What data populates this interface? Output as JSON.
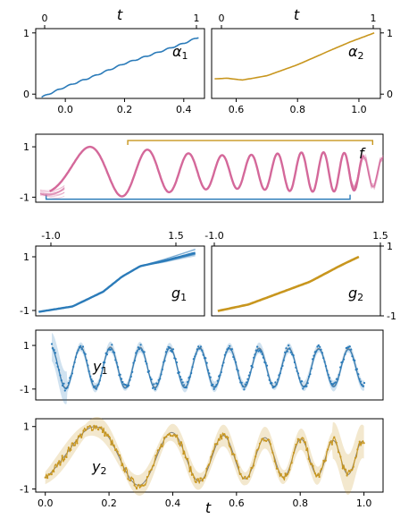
{
  "colors": {
    "blue": "#2b7bb9",
    "gold": "#c8961e",
    "pink": "#d4689a",
    "gray": "#777777"
  },
  "chart_data": [
    {
      "id": "alpha1",
      "type": "line",
      "label": "α",
      "label_sub": "1",
      "top_axis_label": "t",
      "top_ticks": [
        "0",
        "1"
      ],
      "xticks": [
        "0.0",
        "0.2",
        "0.4"
      ],
      "yticks": [
        "0",
        "1"
      ],
      "xlim": [
        -0.1,
        0.47
      ],
      "ylim": [
        -0.07,
        1.07
      ],
      "series": [
        {
          "color": "blue",
          "x": [
            -0.08,
            0.0,
            0.1,
            0.2,
            0.3,
            0.4,
            0.45
          ],
          "y": [
            -0.05,
            0.12,
            0.3,
            0.5,
            0.66,
            0.83,
            0.93
          ]
        }
      ]
    },
    {
      "id": "alpha2",
      "type": "line",
      "label": "α",
      "label_sub": "2",
      "top_axis_label": "t",
      "top_ticks": [
        "0",
        "1"
      ],
      "xticks": [
        "0.6",
        "0.8",
        "1.0"
      ],
      "yticks_right": [
        "0",
        "1"
      ],
      "xlim": [
        0.52,
        1.07
      ],
      "ylim": [
        -0.07,
        1.07
      ],
      "series": [
        {
          "color": "gold",
          "x": [
            0.53,
            0.57,
            0.62,
            0.7,
            0.8,
            0.9,
            0.97,
            1.05
          ],
          "y": [
            0.25,
            0.26,
            0.23,
            0.3,
            0.48,
            0.7,
            0.85,
            1.0
          ]
        }
      ]
    },
    {
      "id": "f",
      "type": "line",
      "label": "f",
      "yticks": [
        "1",
        "-1"
      ],
      "ylim": [
        -1.2,
        1.5
      ],
      "series": [
        {
          "color": "pink",
          "name_hidden": true
        }
      ],
      "brackets": [
        {
          "color": "gold",
          "y": 1.25,
          "from": 0.265,
          "to": 0.97
        },
        {
          "color": "blue",
          "y": -1.08,
          "from": 0.03,
          "to": 0.905
        }
      ]
    },
    {
      "id": "g1",
      "type": "line",
      "label": "g",
      "label_sub": "1",
      "xticks_top": [
        "-1.0",
        "1.5"
      ],
      "yticks": [
        "1",
        "-1"
      ],
      "xlim": [
        -1.1,
        1.65
      ],
      "ylim": [
        -1.2,
        1.4
      ],
      "series": [
        {
          "color": "blue",
          "x": [
            -1.05,
            -0.5,
            0.0,
            0.3,
            0.6,
            1.0,
            1.5
          ],
          "y": [
            -1.05,
            -0.85,
            -0.3,
            0.25,
            0.65,
            0.85,
            1.15
          ]
        }
      ]
    },
    {
      "id": "g2",
      "type": "line",
      "label": "g",
      "label_sub": "2",
      "xticks_top": [
        "-1.0",
        "1.5"
      ],
      "yticks_right": [
        "1",
        "-1"
      ],
      "xlim": [
        -1.1,
        1.65
      ],
      "ylim": [
        -1.1,
        1.05
      ],
      "series": [
        {
          "color": "gold",
          "x": [
            -1.0,
            -0.5,
            0.0,
            0.5,
            1.0,
            1.3
          ],
          "y": [
            -0.95,
            -0.75,
            -0.4,
            -0.05,
            0.45,
            0.72
          ]
        }
      ]
    },
    {
      "id": "y1",
      "type": "line",
      "label": "y",
      "label_sub": "1",
      "yticks": [
        "1",
        "-1"
      ],
      "ylim": [
        -1.5,
        1.7
      ],
      "series": [
        {
          "color": "blue"
        }
      ]
    },
    {
      "id": "y2",
      "type": "line",
      "label": "y",
      "label_sub": "2",
      "xlabel": "t",
      "xticks": [
        "0.0",
        "0.2",
        "0.4",
        "0.6",
        "0.8",
        "1.0"
      ],
      "yticks": [
        "1",
        "-1"
      ],
      "xlim": [
        -0.03,
        1.06
      ],
      "ylim": [
        -1.1,
        1.25
      ],
      "series": [
        {
          "color": "gold"
        }
      ]
    }
  ]
}
